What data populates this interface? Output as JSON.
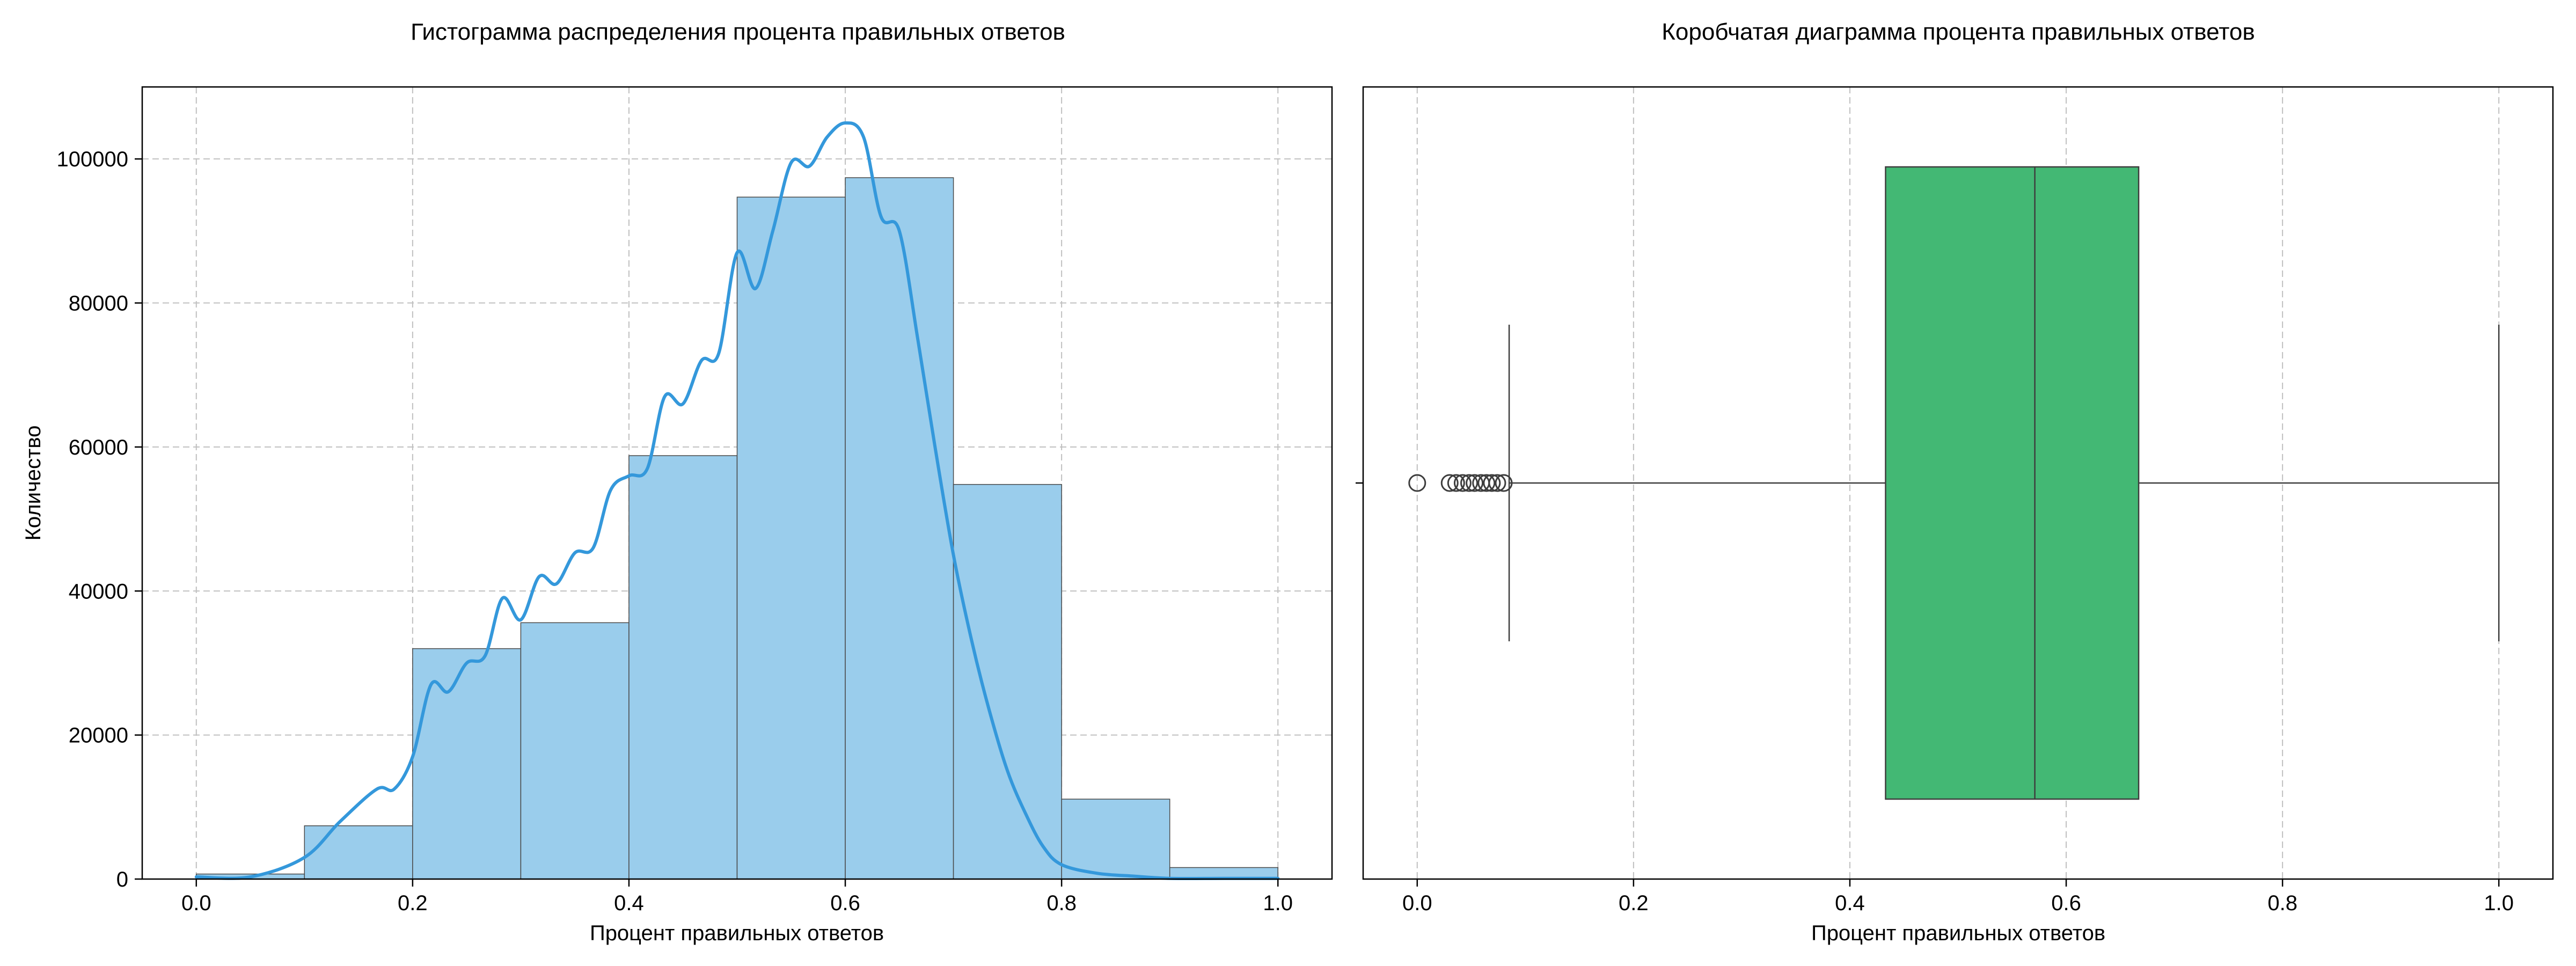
{
  "colors": {
    "hist_fill": "#9ACDEC",
    "kde_line": "#3498DB",
    "box_fill": "#43B874",
    "grid": "#c0c0c0",
    "axis": "#000000",
    "box_edge": "#3d3d3d"
  },
  "chart_data": [
    {
      "type": "bar",
      "subtype": "histogram",
      "title": "Гистограмма распределения процента правильных ответов",
      "xlabel": "Процент правильных ответов",
      "ylabel": "Количество",
      "xlim": [
        -0.05,
        1.05
      ],
      "ylim": [
        0,
        110000
      ],
      "grid": true,
      "xticks": [
        0.0,
        0.2,
        0.4,
        0.6,
        0.8,
        1.0
      ],
      "xtick_labels": [
        "0.0",
        "0.2",
        "0.4",
        "0.6",
        "0.8",
        "1.0"
      ],
      "yticks": [
        0,
        20000,
        40000,
        60000,
        80000,
        100000
      ],
      "ytick_labels": [
        "0",
        "20000",
        "40000",
        "60000",
        "80000",
        "100000"
      ],
      "bins": [
        {
          "x0": 0.0,
          "x1": 0.1,
          "value": 700
        },
        {
          "x0": 0.1,
          "x1": 0.2,
          "value": 7400
        },
        {
          "x0": 0.2,
          "x1": 0.3,
          "value": 32000
        },
        {
          "x0": 0.3,
          "x1": 0.4,
          "value": 35600
        },
        {
          "x0": 0.4,
          "x1": 0.5,
          "value": 58800
        },
        {
          "x0": 0.5,
          "x1": 0.6,
          "value": 94700
        },
        {
          "x0": 0.6,
          "x1": 0.7,
          "value": 97400
        },
        {
          "x0": 0.7,
          "x1": 0.8,
          "value": 54800
        },
        {
          "x0": 0.8,
          "x1": 0.9,
          "value": 11100
        },
        {
          "x0": 0.9,
          "x1": 1.0,
          "value": 1600
        }
      ],
      "kde": {
        "x": [
          0.0,
          0.05,
          0.1,
          0.133,
          0.167,
          0.183,
          0.2,
          0.217,
          0.233,
          0.25,
          0.267,
          0.283,
          0.3,
          0.317,
          0.333,
          0.35,
          0.367,
          0.383,
          0.4,
          0.417,
          0.433,
          0.45,
          0.467,
          0.483,
          0.5,
          0.517,
          0.533,
          0.55,
          0.567,
          0.583,
          0.6,
          0.617,
          0.633,
          0.65,
          0.667,
          0.683,
          0.7,
          0.717,
          0.733,
          0.75,
          0.767,
          0.783,
          0.8,
          0.833,
          0.867,
          0.9,
          0.95,
          1.0
        ],
        "y": [
          300,
          300,
          3000,
          8000,
          12500,
          12500,
          17000,
          27000,
          26000,
          30000,
          31000,
          39000,
          36000,
          42000,
          41000,
          45300,
          46000,
          54000,
          56000,
          57000,
          67000,
          66000,
          72000,
          73000,
          87000,
          82000,
          90000,
          99500,
          99000,
          103000,
          105000,
          103000,
          92000,
          90000,
          75000,
          60000,
          45000,
          33000,
          23500,
          15000,
          9000,
          4500,
          2000,
          800,
          400,
          100,
          100,
          100
        ]
      }
    },
    {
      "type": "box",
      "title": "Коробчатая диаграмма процента правильных ответов",
      "xlabel": "Процент правильных ответов",
      "xlim": [
        -0.05,
        1.05
      ],
      "grid": true,
      "xticks": [
        0.0,
        0.2,
        0.4,
        0.6,
        0.8,
        1.0
      ],
      "xtick_labels": [
        "0.0",
        "0.2",
        "0.4",
        "0.6",
        "0.8",
        "1.0"
      ],
      "box": {
        "whisker_low": 0.085,
        "q1": 0.433,
        "median": 0.571,
        "q3": 0.667,
        "whisker_high": 1.0
      },
      "outliers": [
        0.0,
        0.03,
        0.036,
        0.042,
        0.048,
        0.053,
        0.059,
        0.064,
        0.069,
        0.074,
        0.08
      ]
    }
  ]
}
